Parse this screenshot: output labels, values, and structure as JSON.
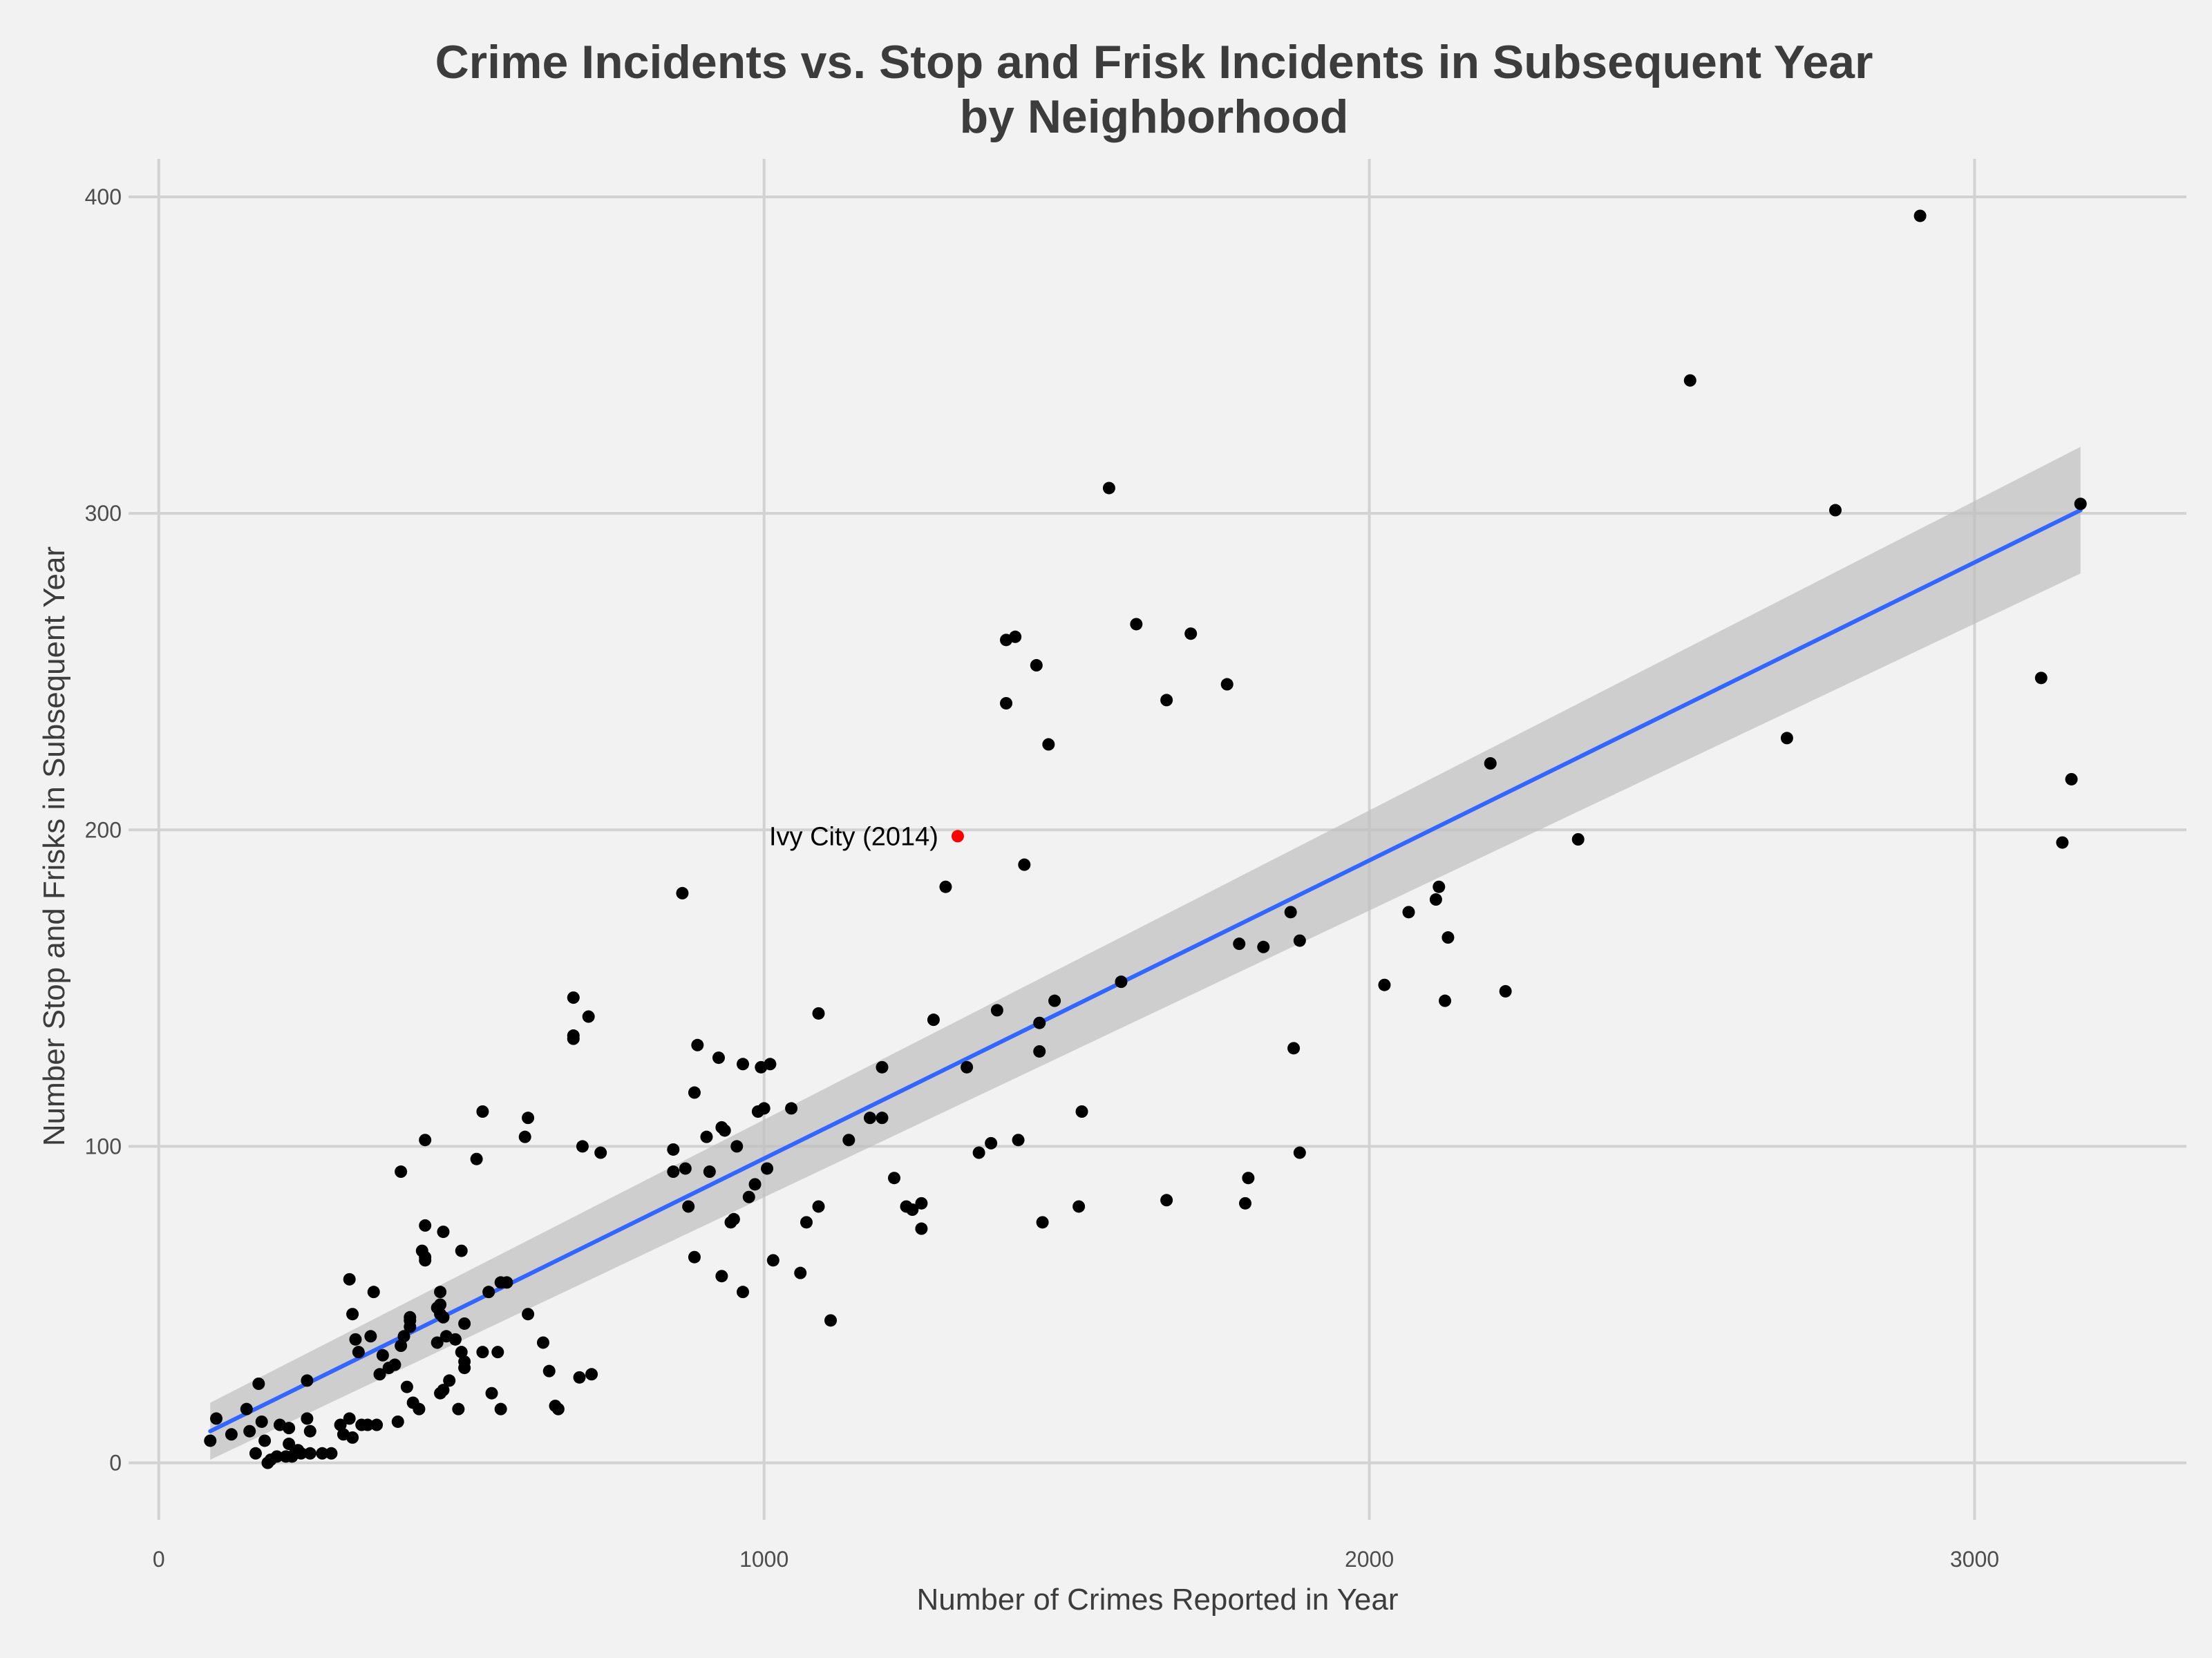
{
  "chart_data": {
    "type": "scatter",
    "title": [
      "Crime Incidents vs. Stop and Frisk Incidents in Subsequent Year",
      "by Neighborhood"
    ],
    "xlabel": "Number of Crimes Reported in Year",
    "ylabel": "Number Stop and Frisks in Subsequent Year",
    "xlim": [
      -50,
      3350
    ],
    "ylim": [
      -18,
      412
    ],
    "xticks": [
      0,
      1000,
      2000,
      3000
    ],
    "yticks": [
      0,
      100,
      200,
      300,
      400
    ],
    "grid": true,
    "point_color": "#000000",
    "highlight_color": "#ff0000",
    "trend_color": "#3366ff",
    "band_color": "#bfbfbf",
    "trend": {
      "x": [
        85,
        3175
      ],
      "y": [
        10,
        301
      ]
    },
    "band": {
      "x": [
        85,
        3175
      ],
      "lower": [
        1,
        281
      ],
      "upper": [
        19,
        321
      ]
    },
    "highlight": {
      "label": "Ivy City (2014)",
      "x": 1320,
      "y": 198
    },
    "points": [
      [
        3175,
        303
      ],
      [
        2910,
        394
      ],
      [
        2530,
        342
      ],
      [
        2770,
        301
      ],
      [
        3110,
        248
      ],
      [
        3145,
        196
      ],
      [
        3160,
        216
      ],
      [
        2690,
        229
      ],
      [
        2345,
        197
      ],
      [
        2200,
        221
      ],
      [
        2225,
        149
      ],
      [
        2130,
        166
      ],
      [
        2125,
        146
      ],
      [
        2115,
        182
      ],
      [
        2110,
        178
      ],
      [
        2065,
        174
      ],
      [
        2025,
        151
      ],
      [
        1885,
        165
      ],
      [
        1885,
        98
      ],
      [
        1870,
        174
      ],
      [
        1875,
        131
      ],
      [
        1825,
        163
      ],
      [
        1800,
        90
      ],
      [
        1795,
        82
      ],
      [
        1785,
        164
      ],
      [
        1765,
        246
      ],
      [
        1705,
        262
      ],
      [
        1665,
        241
      ],
      [
        1665,
        83
      ],
      [
        1615,
        265
      ],
      [
        1590,
        152
      ],
      [
        1570,
        308
      ],
      [
        1525,
        111
      ],
      [
        1520,
        81
      ],
      [
        1480,
        146
      ],
      [
        1470,
        227
      ],
      [
        1460,
        76
      ],
      [
        1455,
        139
      ],
      [
        1455,
        130
      ],
      [
        1450,
        252
      ],
      [
        1430,
        189
      ],
      [
        1420,
        102
      ],
      [
        1415,
        261
      ],
      [
        1400,
        260
      ],
      [
        1400,
        240
      ],
      [
        1385,
        143
      ],
      [
        1375,
        101
      ],
      [
        1355,
        98
      ],
      [
        1335,
        125
      ],
      [
        1300,
        182
      ],
      [
        1280,
        140
      ],
      [
        1260,
        82
      ],
      [
        1260,
        74
      ],
      [
        1245,
        80
      ],
      [
        1235,
        81
      ],
      [
        1215,
        90
      ],
      [
        1195,
        125
      ],
      [
        1195,
        109
      ],
      [
        1175,
        109
      ],
      [
        1140,
        102
      ],
      [
        1110,
        45
      ],
      [
        1090,
        142
      ],
      [
        1090,
        81
      ],
      [
        1070,
        76
      ],
      [
        1060,
        60
      ],
      [
        1045,
        112
      ],
      [
        1015,
        64
      ],
      [
        1010,
        126
      ],
      [
        1005,
        93
      ],
      [
        1000,
        112
      ],
      [
        995,
        125
      ],
      [
        990,
        111
      ],
      [
        985,
        88
      ],
      [
        975,
        84
      ],
      [
        965,
        126
      ],
      [
        965,
        54
      ],
      [
        955,
        100
      ],
      [
        950,
        77
      ],
      [
        945,
        76
      ],
      [
        935,
        105
      ],
      [
        930,
        106
      ],
      [
        930,
        59
      ],
      [
        925,
        128
      ],
      [
        910,
        92
      ],
      [
        905,
        103
      ],
      [
        890,
        132
      ],
      [
        885,
        117
      ],
      [
        885,
        65
      ],
      [
        875,
        81
      ],
      [
        870,
        93
      ],
      [
        865,
        180
      ],
      [
        850,
        92
      ],
      [
        850,
        99
      ],
      [
        730,
        98
      ],
      [
        710,
        141
      ],
      [
        715,
        28
      ],
      [
        695,
        27
      ],
      [
        700,
        100
      ],
      [
        685,
        134
      ],
      [
        685,
        135
      ],
      [
        685,
        147
      ],
      [
        660,
        17
      ],
      [
        655,
        18
      ],
      [
        645,
        29
      ],
      [
        635,
        38
      ],
      [
        610,
        47
      ],
      [
        610,
        109
      ],
      [
        605,
        103
      ],
      [
        575,
        57
      ],
      [
        565,
        57
      ],
      [
        565,
        17
      ],
      [
        560,
        35
      ],
      [
        550,
        22
      ],
      [
        545,
        54
      ],
      [
        535,
        35
      ],
      [
        535,
        111
      ],
      [
        525,
        96
      ],
      [
        505,
        30
      ],
      [
        505,
        44
      ],
      [
        505,
        32
      ],
      [
        500,
        35
      ],
      [
        500,
        67
      ],
      [
        495,
        17
      ],
      [
        490,
        39
      ],
      [
        480,
        26
      ],
      [
        475,
        40
      ],
      [
        470,
        46
      ],
      [
        470,
        73
      ],
      [
        470,
        23
      ],
      [
        465,
        22
      ],
      [
        465,
        47
      ],
      [
        465,
        50
      ],
      [
        465,
        54
      ],
      [
        460,
        49
      ],
      [
        460,
        38
      ],
      [
        440,
        65
      ],
      [
        440,
        64
      ],
      [
        440,
        75
      ],
      [
        440,
        102
      ],
      [
        435,
        67
      ],
      [
        430,
        17
      ],
      [
        420,
        19
      ],
      [
        415,
        45
      ],
      [
        415,
        43
      ],
      [
        415,
        46
      ],
      [
        410,
        24
      ],
      [
        405,
        40
      ],
      [
        400,
        92
      ],
      [
        400,
        37
      ],
      [
        395,
        13
      ],
      [
        390,
        31
      ],
      [
        380,
        30
      ],
      [
        370,
        34
      ],
      [
        365,
        28
      ],
      [
        360,
        12
      ],
      [
        355,
        54
      ],
      [
        350,
        40
      ],
      [
        345,
        12
      ],
      [
        335,
        12
      ],
      [
        330,
        35
      ],
      [
        325,
        39
      ],
      [
        320,
        47
      ],
      [
        320,
        8
      ],
      [
        315,
        58
      ],
      [
        315,
        14
      ],
      [
        305,
        9
      ],
      [
        300,
        12
      ],
      [
        285,
        3
      ],
      [
        270,
        3
      ],
      [
        250,
        10
      ],
      [
        250,
        3
      ],
      [
        245,
        26
      ],
      [
        245,
        14
      ],
      [
        235,
        3
      ],
      [
        230,
        4
      ],
      [
        225,
        3
      ],
      [
        220,
        2
      ],
      [
        215,
        11
      ],
      [
        215,
        6
      ],
      [
        210,
        2
      ],
      [
        200,
        12
      ],
      [
        195,
        2
      ],
      [
        185,
        1
      ],
      [
        180,
        0
      ],
      [
        175,
        7
      ],
      [
        170,
        13
      ],
      [
        160,
        3
      ],
      [
        165,
        25
      ],
      [
        150,
        10
      ],
      [
        145,
        17
      ],
      [
        120,
        9
      ],
      [
        95,
        14
      ],
      [
        85,
        7
      ]
    ]
  }
}
